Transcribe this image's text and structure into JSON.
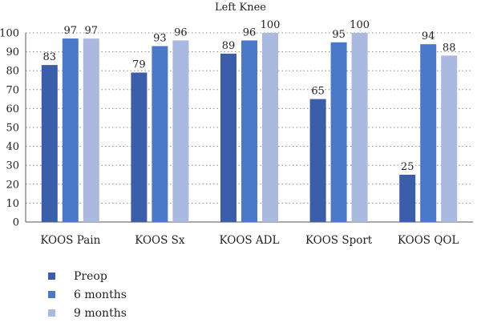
{
  "chart_data": {
    "type": "bar",
    "title": "Left Knee",
    "categories": [
      "KOOS Pain",
      "KOOS Sx",
      "KOOS ADL",
      "KOOS Sport",
      "KOOS QOL"
    ],
    "series": [
      {
        "name": "Preop",
        "values": [
          83,
          79,
          89,
          65,
          25
        ],
        "color": "#3a5ea9"
      },
      {
        "name": "6 months",
        "values": [
          97,
          93,
          96,
          95,
          94
        ],
        "color": "#4a79c9"
      },
      {
        "name": "9 months",
        "values": [
          97,
          96,
          100,
          100,
          88
        ],
        "color": "#a9b9e0"
      }
    ],
    "ylim": [
      0,
      100
    ],
    "yticks": [
      0,
      10,
      20,
      30,
      40,
      50,
      60,
      70,
      80,
      90,
      100
    ],
    "grid": true,
    "legend_position": "bottom-left"
  }
}
